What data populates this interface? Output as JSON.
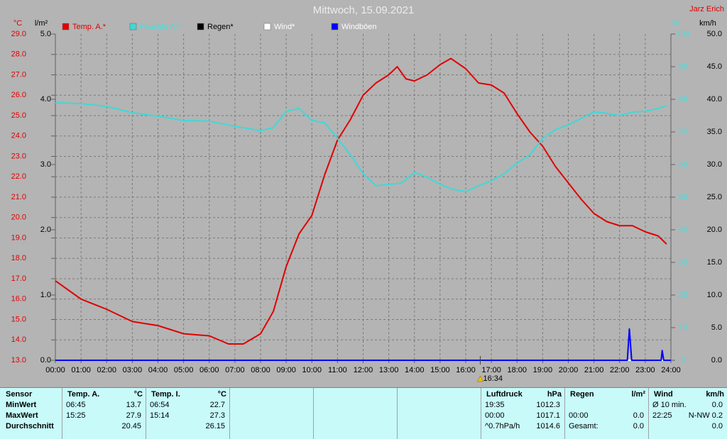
{
  "chart_data": {
    "type": "line",
    "title": "Mittwoch, 15.09.2021",
    "owner": "Jarz Erich",
    "xlim": [
      0,
      24
    ],
    "xticks": [
      {
        "value": 0,
        "label": "00:00"
      },
      {
        "value": 1,
        "label": "01:00"
      },
      {
        "value": 2,
        "label": "02:00"
      },
      {
        "value": 3,
        "label": "03:00"
      },
      {
        "value": 4,
        "label": "04:00"
      },
      {
        "value": 5,
        "label": "05:00"
      },
      {
        "value": 6,
        "label": "06:00"
      },
      {
        "value": 7,
        "label": "07:00"
      },
      {
        "value": 8,
        "label": "08:00"
      },
      {
        "value": 9,
        "label": "09:00"
      },
      {
        "value": 10,
        "label": "10:00"
      },
      {
        "value": 11,
        "label": "11:00"
      },
      {
        "value": 12,
        "label": "12:00"
      },
      {
        "value": 13,
        "label": "13:00"
      },
      {
        "value": 14,
        "label": "14:00"
      },
      {
        "value": 15,
        "label": "15:00"
      },
      {
        "value": 16,
        "label": "16:00"
      },
      {
        "value": 17,
        "label": "17:00"
      },
      {
        "value": 18,
        "label": "18:00"
      },
      {
        "value": 19,
        "label": "19:00"
      },
      {
        "value": 20,
        "label": "20:00"
      },
      {
        "value": 21,
        "label": "21:00"
      },
      {
        "value": 22,
        "label": "22:00"
      },
      {
        "value": 23,
        "label": "23:00"
      },
      {
        "value": 24,
        "label": "24:00"
      }
    ],
    "grid": true,
    "axes": {
      "temp": {
        "label": "°C",
        "color": "#e00000",
        "lim": [
          13,
          29
        ],
        "ticks": [
          {
            "value": 13,
            "label": "13.0"
          },
          {
            "value": 14,
            "label": "14.0"
          },
          {
            "value": 15,
            "label": "15.0"
          },
          {
            "value": 16,
            "label": "16.0"
          },
          {
            "value": 17,
            "label": "17.0"
          },
          {
            "value": 18,
            "label": "18.0"
          },
          {
            "value": 19,
            "label": "19.0"
          },
          {
            "value": 20,
            "label": "20.0"
          },
          {
            "value": 21,
            "label": "21.0"
          },
          {
            "value": 22,
            "label": "22.0"
          },
          {
            "value": 23,
            "label": "23.0"
          },
          {
            "value": 24,
            "label": "24.0"
          },
          {
            "value": 25,
            "label": "25.0"
          },
          {
            "value": 26,
            "label": "26.0"
          },
          {
            "value": 27,
            "label": "27.0"
          },
          {
            "value": 28,
            "label": "28.0"
          },
          {
            "value": 29,
            "label": "29.0"
          }
        ]
      },
      "rain": {
        "label": "l/m²",
        "color": "#000000",
        "lim": [
          0,
          5
        ],
        "ticks": [
          {
            "value": 0,
            "label": "0.0"
          },
          {
            "value": 1,
            "label": "1.0"
          },
          {
            "value": 2,
            "label": "2.0"
          },
          {
            "value": 3,
            "label": "3.0"
          },
          {
            "value": 4,
            "label": "4.0"
          },
          {
            "value": 5,
            "label": "5.0"
          }
        ]
      },
      "humidity": {
        "label": "%",
        "color": "#40e0e0",
        "lim": [
          0,
          100
        ],
        "ticks": [
          0,
          10,
          20,
          30,
          40,
          50,
          60,
          70,
          80,
          90,
          100
        ]
      },
      "wind": {
        "label": "km/h",
        "color": "#000000",
        "lim": [
          0,
          50
        ],
        "ticks": [
          {
            "value": 0,
            "label": "0.0"
          },
          {
            "value": 5,
            "label": "5.0"
          },
          {
            "value": 10,
            "label": "10.0"
          },
          {
            "value": 15,
            "label": "15.0"
          },
          {
            "value": 20,
            "label": "20.0"
          },
          {
            "value": 25,
            "label": "25.0"
          },
          {
            "value": 30,
            "label": "30.0"
          },
          {
            "value": 35,
            "label": "35.0"
          },
          {
            "value": 40,
            "label": "40.0"
          },
          {
            "value": 45,
            "label": "45.0"
          },
          {
            "value": 50,
            "label": "50.0"
          }
        ]
      }
    },
    "series": [
      {
        "name": "Temp. A.*",
        "color": "#e00000",
        "label_color": "#e00000",
        "axis": "temp",
        "x": [
          0,
          1,
          2,
          3,
          4,
          5,
          6,
          6.75,
          7.33,
          8,
          8.5,
          9,
          9.5,
          10,
          10.5,
          11,
          11.5,
          12,
          12.5,
          13,
          13.33,
          13.67,
          14,
          14.5,
          15,
          15.42,
          16,
          16.5,
          17,
          17.5,
          18,
          18.5,
          19,
          19.5,
          20,
          20.5,
          21,
          21.5,
          22,
          22.5,
          23,
          23.5,
          23.83
        ],
        "values": [
          16.9,
          16.0,
          15.5,
          14.9,
          14.7,
          14.3,
          14.2,
          13.8,
          13.8,
          14.3,
          15.4,
          17.6,
          19.2,
          20.1,
          22.1,
          23.8,
          24.8,
          26.0,
          26.6,
          27.0,
          27.4,
          26.8,
          26.7,
          27.0,
          27.5,
          27.8,
          27.3,
          26.6,
          26.5,
          26.1,
          25.1,
          24.2,
          23.5,
          22.5,
          21.7,
          20.9,
          20.2,
          19.8,
          19.6,
          19.6,
          19.3,
          19.1,
          18.7
        ]
      },
      {
        "name": "Feuchte A.*",
        "color": "#40d8d8",
        "label_color": "#40e0e0",
        "axis": "humidity",
        "x": [
          0,
          1,
          2,
          3,
          4,
          5,
          6,
          7,
          8,
          8.5,
          9,
          9.5,
          10,
          10.5,
          11,
          11.5,
          12,
          12.5,
          13,
          13.5,
          14,
          14.5,
          15,
          15.5,
          16,
          16.5,
          17,
          17.5,
          18,
          18.5,
          19,
          19.5,
          20,
          20.5,
          21,
          21.5,
          22,
          22.5,
          23,
          23.5,
          23.83
        ],
        "values": [
          78.9,
          78.7,
          77.8,
          75.9,
          74.8,
          73.5,
          73.3,
          71.7,
          70.4,
          71.3,
          76.3,
          77.2,
          73.5,
          72.8,
          68.0,
          63.0,
          57.2,
          53.5,
          53.9,
          54.3,
          57.6,
          56.1,
          53.9,
          52.4,
          51.7,
          53.5,
          55.0,
          57.2,
          60.4,
          63.0,
          68.0,
          70.7,
          72.2,
          74.1,
          76.1,
          75.7,
          75.0,
          76.1,
          76.3,
          77.2,
          78.0
        ]
      },
      {
        "name": "Regen*",
        "color": "#000000",
        "label_color": "#000000",
        "axis": "rain",
        "x": [
          0,
          24
        ],
        "values": [
          0,
          0
        ]
      },
      {
        "name": "Wind*",
        "color": "#ffffff",
        "label_color": "#ffffff",
        "axis": "wind",
        "x": [
          0,
          24
        ],
        "values": [
          0,
          0
        ]
      },
      {
        "name": "Windböen",
        "color": "#0000ff",
        "label_color": "#ffffff",
        "axis": "wind",
        "x": [
          0,
          22.3,
          22.38,
          22.47,
          23.62,
          23.66,
          23.72,
          24
        ],
        "values": [
          0,
          0,
          4.8,
          0,
          0,
          1.5,
          0,
          0
        ]
      }
    ],
    "annotation": {
      "x": 16.5667,
      "label": "16:34"
    }
  },
  "stats": {
    "sensor": {
      "title": "Sensor",
      "rows": [
        "MinWert",
        "MaxWert",
        "Durchschnitt"
      ]
    },
    "columns": [
      {
        "title": "Temp. A.",
        "unit": "°C",
        "rows": [
          {
            "time": "06:45",
            "value": "13.7"
          },
          {
            "time": "15:25",
            "value": "27.9"
          },
          {
            "value": "20.45"
          }
        ]
      },
      {
        "title": "Temp. I.",
        "unit": "°C",
        "rows": [
          {
            "time": "06:54",
            "value": "22.7"
          },
          {
            "time": "15:14",
            "value": "27.3"
          },
          {
            "value": "26.15"
          }
        ]
      },
      {
        "title": "Luftdruck",
        "unit": "hPa",
        "rows": [
          {
            "time": "19:35",
            "value": "1012.3"
          },
          {
            "time": "00:00",
            "value": "1017.1"
          },
          {
            "time": "^0.7hPa/h",
            "value": "1014.6"
          }
        ]
      },
      {
        "title": "Regen",
        "unit": "l/m²",
        "rows": [
          null,
          {
            "time": "00:00",
            "value": "0.0"
          },
          {
            "time": "Gesamt:",
            "value": "0.0"
          }
        ]
      },
      {
        "title": "Wind",
        "unit": "km/h",
        "rows": [
          {
            "time": "Ø 10 min.",
            "value": "0.0"
          },
          {
            "time": "22:25",
            "value": "N-NW 0.2"
          },
          {
            "value": "0.0"
          }
        ]
      }
    ]
  }
}
